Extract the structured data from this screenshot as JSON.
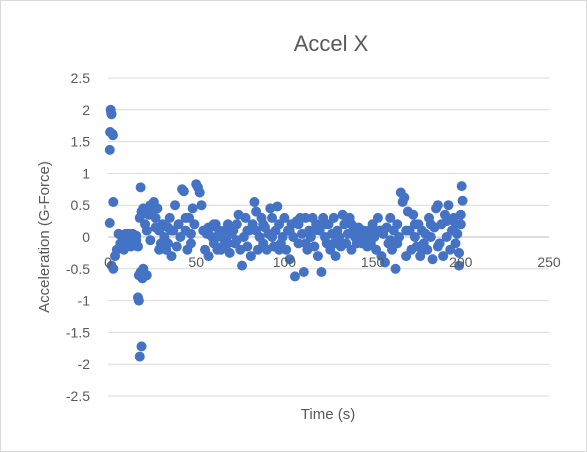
{
  "chart_data": {
    "type": "scatter",
    "title": "Accel X",
    "xlabel": "Time (s)",
    "ylabel": "Acceleration (G-Force)",
    "xlim": [
      0,
      250
    ],
    "ylim": [
      -2.5,
      2.5
    ],
    "x_ticks": [
      "0",
      "50",
      "100",
      "150",
      "200",
      "250"
    ],
    "y_ticks": [
      "2.5",
      "2",
      "1.5",
      "1",
      "0.5",
      "0",
      "-0.5",
      "-1",
      "-1.5",
      "-2",
      "-2.5"
    ],
    "grid": "horizontal",
    "legend": "none",
    "point_color": "#4472c4",
    "points": [
      [
        1.5,
        2.0
      ],
      [
        1.8,
        1.95
      ],
      [
        2.0,
        1.93
      ],
      [
        1.2,
        1.65
      ],
      [
        2.5,
        1.62
      ],
      [
        1.0,
        1.37
      ],
      [
        2.8,
        1.6
      ],
      [
        3.0,
        0.55
      ],
      [
        1.0,
        0.22
      ],
      [
        2.0,
        -0.45
      ],
      [
        3.0,
        -0.5
      ],
      [
        4.0,
        -0.3
      ],
      [
        5.0,
        -0.2
      ],
      [
        6,
        0.05
      ],
      [
        7,
        -0.1
      ],
      [
        8,
        0.0
      ],
      [
        9,
        -0.2
      ],
      [
        10,
        0.05
      ],
      [
        11,
        -0.1
      ],
      [
        12,
        0.0
      ],
      [
        13,
        -0.15
      ],
      [
        14,
        0.05
      ],
      [
        15,
        0.0
      ],
      [
        16,
        -0.05
      ],
      [
        17,
        -0.95
      ],
      [
        17.5,
        -1.0
      ],
      [
        18,
        -1.88
      ],
      [
        19,
        -1.72
      ],
      [
        18.5,
        -0.55
      ],
      [
        17.5,
        -0.6
      ],
      [
        19.5,
        -0.65
      ],
      [
        20,
        -0.5
      ],
      [
        22,
        -0.6
      ],
      [
        17,
        -0.15
      ],
      [
        18,
        0.3
      ],
      [
        18.5,
        0.78
      ],
      [
        19,
        0.4
      ],
      [
        20,
        0.45
      ],
      [
        21,
        0.2
      ],
      [
        22,
        0.1
      ],
      [
        23,
        0.35
      ],
      [
        24,
        0.5
      ],
      [
        25,
        0.42
      ],
      [
        26,
        0.55
      ],
      [
        27,
        0.3
      ],
      [
        28,
        0.45
      ],
      [
        29,
        0.1
      ],
      [
        30,
        -0.1
      ],
      [
        31,
        0.2
      ],
      [
        32,
        0.0
      ],
      [
        33,
        -0.2
      ],
      [
        34,
        0.15
      ],
      [
        35,
        0.3
      ],
      [
        36,
        -0.3
      ],
      [
        37,
        0.1
      ],
      [
        38,
        0.5
      ],
      [
        39,
        -0.15
      ],
      [
        40,
        0.2
      ],
      [
        41,
        0.0
      ],
      [
        42,
        0.75
      ],
      [
        43,
        0.72
      ],
      [
        44,
        0.1
      ],
      [
        45,
        -0.2
      ],
      [
        46,
        0.3
      ],
      [
        47,
        -0.1
      ],
      [
        48,
        0.45
      ],
      [
        49,
        0.2
      ],
      [
        50,
        0.83
      ],
      [
        51,
        0.78
      ],
      [
        52,
        0.7
      ],
      [
        53,
        0.5
      ],
      [
        54,
        0.1
      ],
      [
        55,
        -0.2
      ],
      [
        56,
        0.05
      ],
      [
        57,
        -0.3
      ],
      [
        58,
        0.15
      ],
      [
        59,
        0.0
      ],
      [
        60,
        -0.1
      ],
      [
        61,
        0.2
      ],
      [
        62,
        -0.2
      ],
      [
        63,
        0.1
      ],
      [
        64,
        0.0
      ],
      [
        65,
        -0.15
      ],
      [
        66,
        0.1
      ],
      [
        67,
        -0.05
      ],
      [
        68,
        0.2
      ],
      [
        69,
        -0.25
      ],
      [
        70,
        0.05
      ],
      [
        71,
        0.1
      ],
      [
        72,
        -0.1
      ],
      [
        73,
        0.2
      ],
      [
        74,
        0.35
      ],
      [
        75,
        -0.2
      ],
      [
        76,
        -0.45
      ],
      [
        77,
        0.0
      ],
      [
        78,
        0.3
      ],
      [
        79,
        -0.15
      ],
      [
        80,
        0.1
      ],
      [
        81,
        -0.3
      ],
      [
        82,
        0.2
      ],
      [
        83,
        0.55
      ],
      [
        84,
        0.4
      ],
      [
        85,
        -0.2
      ],
      [
        86,
        0.0
      ],
      [
        87,
        0.3
      ],
      [
        88,
        -0.1
      ],
      [
        89,
        0.15
      ],
      [
        90,
        -0.2
      ],
      [
        91,
        0.05
      ],
      [
        92,
        0.45
      ],
      [
        93,
        0.3
      ],
      [
        94,
        -0.15
      ],
      [
        95,
        0.1
      ],
      [
        96,
        0.48
      ],
      [
        97,
        0.2
      ],
      [
        98,
        -0.1
      ],
      [
        99,
        0.0
      ],
      [
        100,
        0.3
      ],
      [
        101,
        -0.2
      ],
      [
        102,
        0.1
      ],
      [
        103,
        -0.35
      ],
      [
        104,
        0.2
      ],
      [
        105,
        0.0
      ],
      [
        106,
        -0.62
      ],
      [
        107,
        0.25
      ],
      [
        108,
        -0.1
      ],
      [
        109,
        0.3
      ],
      [
        110,
        0.05
      ],
      [
        111,
        -0.55
      ],
      [
        112,
        0.3
      ],
      [
        113,
        -0.2
      ],
      [
        114,
        0.1
      ],
      [
        115,
        0.0
      ],
      [
        116,
        0.3
      ],
      [
        117,
        -0.15
      ],
      [
        118,
        0.2
      ],
      [
        119,
        -0.3
      ],
      [
        120,
        0.1
      ],
      [
        121,
        -0.55
      ],
      [
        122,
        0.3
      ],
      [
        123,
        0.0
      ],
      [
        124,
        -0.1
      ],
      [
        125,
        0.2
      ],
      [
        126,
        -0.2
      ],
      [
        127,
        0.05
      ],
      [
        128,
        0.3
      ],
      [
        129,
        -0.3
      ],
      [
        130,
        0.1
      ],
      [
        131,
        0.0
      ],
      [
        132,
        -0.15
      ],
      [
        133,
        0.35
      ],
      [
        134,
        0.2
      ],
      [
        135,
        -0.1
      ],
      [
        136,
        0.05
      ],
      [
        137,
        0.3
      ],
      [
        138,
        -0.2
      ],
      [
        139,
        0.1
      ],
      [
        140,
        0.0
      ],
      [
        141,
        -0.1
      ],
      [
        142,
        0.15
      ],
      [
        143,
        -0.05
      ],
      [
        144,
        0.05
      ],
      [
        145,
        0.1
      ],
      [
        146,
        0.0
      ],
      [
        147,
        -0.15
      ],
      [
        148,
        0.1
      ],
      [
        149,
        -0.1
      ],
      [
        150,
        0.2
      ],
      [
        151,
        0.0
      ],
      [
        152,
        -0.2
      ],
      [
        153,
        0.3
      ],
      [
        154,
        0.1
      ],
      [
        155,
        -0.3
      ],
      [
        156,
        0.05
      ],
      [
        157,
        -0.4
      ],
      [
        158,
        0.15
      ],
      [
        159,
        -0.1
      ],
      [
        160,
        0.3
      ],
      [
        161,
        -0.2
      ],
      [
        162,
        0.1
      ],
      [
        163,
        -0.5
      ],
      [
        164,
        0.2
      ],
      [
        165,
        0.0
      ],
      [
        166,
        0.7
      ],
      [
        167,
        0.55
      ],
      [
        168,
        0.62
      ],
      [
        169,
        -0.3
      ],
      [
        170,
        0.4
      ],
      [
        171,
        0.1
      ],
      [
        172,
        -0.2
      ],
      [
        173,
        0.35
      ],
      [
        174,
        0.0
      ],
      [
        175,
        -0.15
      ],
      [
        176,
        0.2
      ],
      [
        177,
        -0.3
      ],
      [
        178,
        0.1
      ],
      [
        179,
        -0.1
      ],
      [
        180,
        0.05
      ],
      [
        181,
        -0.2
      ],
      [
        182,
        0.3
      ],
      [
        183,
        0.0
      ],
      [
        184,
        -0.35
      ],
      [
        185,
        0.15
      ],
      [
        186,
        0.45
      ],
      [
        187,
        0.5
      ],
      [
        188,
        -0.1
      ],
      [
        189,
        0.2
      ],
      [
        190,
        -0.3
      ],
      [
        191,
        0.35
      ],
      [
        192,
        0.0
      ],
      [
        193,
        0.5
      ],
      [
        194,
        -0.2
      ],
      [
        195,
        0.1
      ],
      [
        196,
        0.3
      ],
      [
        197,
        -0.1
      ],
      [
        198,
        0.05
      ],
      [
        199,
        -0.25
      ],
      [
        200,
        0.2
      ],
      [
        200.5,
        0.8
      ],
      [
        201,
        0.57
      ],
      [
        200,
        0.35
      ],
      [
        199,
        -0.45
      ],
      [
        12,
        0.05
      ],
      [
        14,
        -0.05
      ],
      [
        16,
        0.02
      ],
      [
        24,
        -0.05
      ],
      [
        27,
        0.15
      ],
      [
        29,
        -0.2
      ],
      [
        34,
        -0.1
      ],
      [
        36,
        0.1
      ],
      [
        44,
        0.3
      ],
      [
        47,
        0.05
      ],
      [
        57,
        0.15
      ],
      [
        60,
        0.2
      ],
      [
        64,
        -0.2
      ],
      [
        68,
        -0.1
      ],
      [
        73,
        -0.05
      ],
      [
        79,
        0.1
      ],
      [
        84,
        0.1
      ],
      [
        88,
        0.2
      ],
      [
        93,
        0.0
      ],
      [
        97,
        -0.2
      ],
      [
        103,
        0.1
      ],
      [
        108,
        0.2
      ],
      [
        112,
        -0.1
      ],
      [
        117,
        0.1
      ],
      [
        123,
        0.2
      ],
      [
        128,
        -0.1
      ],
      [
        133,
        -0.1
      ],
      [
        138,
        0.2
      ],
      [
        144,
        -0.1
      ],
      [
        149,
        0.1
      ],
      [
        155,
        0.1
      ],
      [
        160,
        -0.05
      ],
      [
        164,
        -0.1
      ],
      [
        169,
        0.1
      ],
      [
        174,
        0.2
      ],
      [
        178,
        -0.2
      ],
      [
        183,
        0.2
      ],
      [
        187,
        -0.15
      ],
      [
        192,
        0.25
      ],
      [
        197,
        0.2
      ]
    ]
  }
}
